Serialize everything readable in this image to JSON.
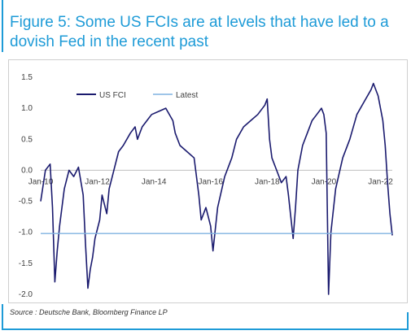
{
  "title": "Figure 5: Some US FCIs are at levels that have led to a dovish Fed in the recent past",
  "source": "Source : Deutsche Bank, Bloomberg Finance LP",
  "colors": {
    "accent": "#1e9bd7",
    "series": "#1a1a6e",
    "latest": "#7fb2e0"
  },
  "chart_data": {
    "type": "line",
    "title": "Figure 5: Some US FCIs are at levels that have led to a dovish Fed in the recent past",
    "ylim": [
      -2.0,
      1.5
    ],
    "yticks": [
      "1.5",
      "1.0",
      "0.5",
      "0.0",
      "-0.5",
      "-1.0",
      "-1.5",
      "-2.0"
    ],
    "xlim": [
      "2010-01",
      "2022-06"
    ],
    "xticks": [
      "Jan-10",
      "Jan-12",
      "Jan-14",
      "Jan-16",
      "Jan-18",
      "Jan-20",
      "Jan-22"
    ],
    "legend": {
      "placement": "top-left",
      "entries": [
        "US FCI",
        "Latest"
      ]
    },
    "series": [
      {
        "name": "US FCI",
        "x": [
          "2010-01",
          "2010-03",
          "2010-05",
          "2010-06",
          "2010-07",
          "2010-08",
          "2010-09",
          "2010-11",
          "2011-01",
          "2011-03",
          "2011-05",
          "2011-07",
          "2011-08",
          "2011-09",
          "2011-10",
          "2011-11",
          "2011-12",
          "2012-02",
          "2012-03",
          "2012-05",
          "2012-06",
          "2012-08",
          "2012-10",
          "2012-12",
          "2013-03",
          "2013-05",
          "2013-06",
          "2013-08",
          "2013-10",
          "2013-12",
          "2014-03",
          "2014-06",
          "2014-09",
          "2014-10",
          "2014-12",
          "2015-03",
          "2015-06",
          "2015-08",
          "2015-09",
          "2015-11",
          "2016-01",
          "2016-02",
          "2016-04",
          "2016-07",
          "2016-10",
          "2016-12",
          "2017-03",
          "2017-06",
          "2017-09",
          "2017-12",
          "2018-01",
          "2018-02",
          "2018-03",
          "2018-05",
          "2018-07",
          "2018-09",
          "2018-10",
          "2018-12",
          "2019-01",
          "2019-02",
          "2019-04",
          "2019-06",
          "2019-08",
          "2019-10",
          "2019-12",
          "2020-01",
          "2020-02",
          "2020-03",
          "2020-04",
          "2020-06",
          "2020-09",
          "2020-12",
          "2021-03",
          "2021-06",
          "2021-09",
          "2021-10",
          "2021-12",
          "2022-01",
          "2022-02",
          "2022-03",
          "2022-04",
          "2022-05",
          "2022-06"
        ],
        "values": [
          -0.5,
          0.0,
          0.1,
          -0.6,
          -1.8,
          -1.3,
          -0.9,
          -0.3,
          0.0,
          -0.1,
          0.05,
          -0.4,
          -1.2,
          -1.9,
          -1.6,
          -1.4,
          -1.1,
          -0.8,
          -0.4,
          -0.7,
          -0.3,
          0.0,
          0.3,
          0.4,
          0.6,
          0.7,
          0.5,
          0.7,
          0.8,
          0.9,
          0.95,
          1.0,
          0.8,
          0.6,
          0.4,
          0.3,
          0.2,
          -0.4,
          -0.8,
          -0.6,
          -0.9,
          -1.3,
          -0.6,
          -0.1,
          0.2,
          0.5,
          0.7,
          0.8,
          0.9,
          1.05,
          1.15,
          0.5,
          0.2,
          0.0,
          -0.2,
          -0.1,
          -0.4,
          -1.1,
          -0.6,
          0.0,
          0.4,
          0.6,
          0.8,
          0.9,
          1.0,
          0.9,
          0.6,
          -2.0,
          -1.0,
          -0.3,
          0.2,
          0.5,
          0.9,
          1.1,
          1.3,
          1.4,
          1.2,
          1.0,
          0.8,
          0.4,
          -0.2,
          -0.7,
          -1.05
        ]
      },
      {
        "name": "Latest",
        "x": [
          "2010-01",
          "2022-06"
        ],
        "values": [
          -1.02,
          -1.02
        ]
      }
    ]
  }
}
